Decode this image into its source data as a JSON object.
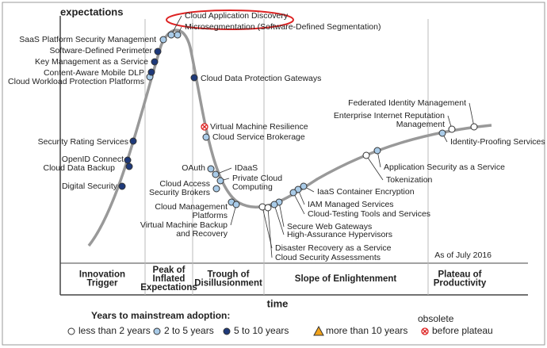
{
  "axis": {
    "y_label": "expectations",
    "x_label": "time"
  },
  "as_of": "As of July 2016",
  "phases": [
    {
      "lines": [
        "Innovation",
        "Trigger"
      ]
    },
    {
      "lines": [
        "Peak of",
        "Inflated",
        "Expectations"
      ]
    },
    {
      "lines": [
        "Trough of",
        "Disillusionment"
      ]
    },
    {
      "lines": [
        "Slope of Enlightenment"
      ]
    },
    {
      "lines": [
        "Plateau of",
        "Productivity"
      ]
    }
  ],
  "legend": {
    "title": "Years to mainstream adoption:",
    "items": [
      {
        "label": "less than 2 years",
        "technologies": [
          [
            "Disaster Recovery as a Service"
          ],
          [
            "Cloud Security Assessments"
          ],
          [
            "Tokenization"
          ],
          [
            "Enterprise Internet Reputation",
            "Management"
          ],
          [
            "Federated Identity Management"
          ]
        ]
      },
      {
        "label": "2 to 5 years",
        "technologies": [
          [
            "Cloud Application Discovery"
          ],
          [
            "Microsegmentation (Software-Defined Segmentation)"
          ],
          [
            "SaaS Platform Security Management"
          ],
          [
            "Cloud Workload Protection Platforms"
          ],
          [
            "Cloud Service Brokerage"
          ],
          [
            "OAuth"
          ],
          [
            "IDaaS"
          ],
          [
            "Private Cloud",
            "Computing"
          ],
          [
            "Cloud Access",
            "Security Brokers"
          ],
          [
            "Cloud Management",
            "Platforms"
          ],
          [
            "Virtual Machine Backup",
            "and Recovery"
          ],
          [
            "Secure Web Gateways"
          ],
          [
            "High-Assurance Hypervisors"
          ],
          [
            "IAM Managed Services"
          ],
          [
            "Cloud-Testing Tools and Services"
          ],
          [
            "IaaS Container Encryption"
          ],
          [
            "Application Security as a Service"
          ],
          [
            "Identity-Proofing Services"
          ]
        ]
      },
      {
        "label": "5 to 10 years",
        "technologies": [
          [
            "Software-Defined Perimeter"
          ],
          [
            "Key Management as a Service"
          ],
          [
            "Content-Aware Mobile DLP"
          ],
          [
            "Cloud Data Protection Gateways"
          ],
          [
            "Security Rating Services"
          ],
          [
            "OpenID Connect"
          ],
          [
            "Cloud Data Backup"
          ],
          [
            "Digital Security"
          ]
        ]
      },
      {
        "label": "more than 10 years",
        "technologies": []
      },
      {
        "heading": "obsolete",
        "label": "before plateau",
        "technologies": [
          [
            "Virtual Machine Resilience"
          ]
        ]
      }
    ]
  }
}
